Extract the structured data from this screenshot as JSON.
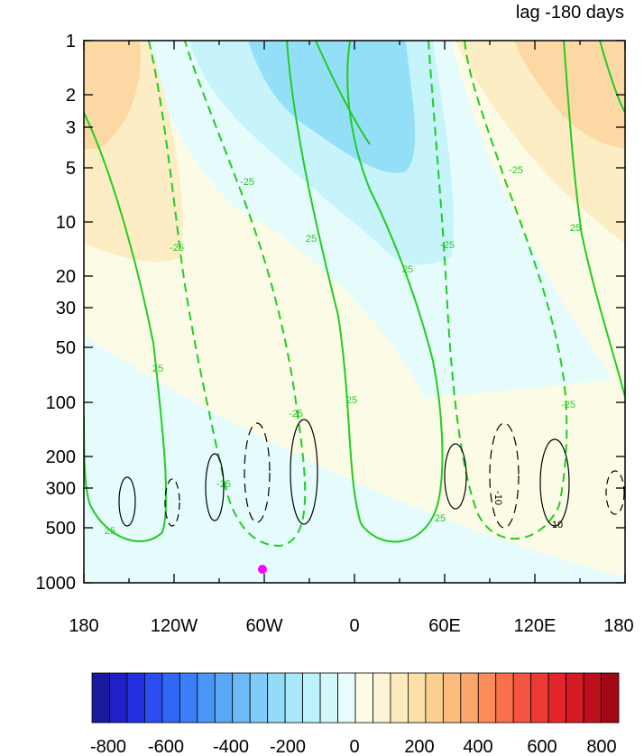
{
  "chart_data": {
    "type": "heatmap",
    "title": "lag -180 days",
    "x_ticks": [
      "180",
      "120W",
      "60W",
      "0",
      "60E",
      "120E",
      "180"
    ],
    "y_ticks": [
      "1",
      "2",
      "3",
      "5",
      "10",
      "20",
      "30",
      "50",
      "100",
      "200",
      "300",
      "500",
      "1000"
    ],
    "y_scale": "log",
    "y_reversed": true,
    "colorbar": {
      "labels": [
        "-800",
        "-600",
        "-400",
        "-200",
        "0",
        "200",
        "400",
        "600",
        "800"
      ],
      "levels": 30,
      "colors": [
        "#1a1a9e",
        "#2020c8",
        "#2430e0",
        "#2a4cf0",
        "#3266f5",
        "#3c7ef8",
        "#4896f8",
        "#58a8f8",
        "#6cbaf8",
        "#80cbf8",
        "#94dbf8",
        "#a8e8fa",
        "#bcf2fc",
        "#d2f8fc",
        "#e8fcfc",
        "#fcfce8",
        "#fcf4d4",
        "#fcebbf",
        "#fce0a8",
        "#fcd090",
        "#fcbc7c",
        "#fca66a",
        "#fc8c5a",
        "#f8704c",
        "#f45440",
        "#ee3a36",
        "#e4262c",
        "#d41a24",
        "#bc101c",
        "#a00814"
      ]
    },
    "contours": {
      "labels": [
        "25",
        "-25",
        "10",
        "-10"
      ]
    },
    "marker": {
      "lon": -60,
      "pressure": 850,
      "color": "#ff00ff"
    }
  }
}
